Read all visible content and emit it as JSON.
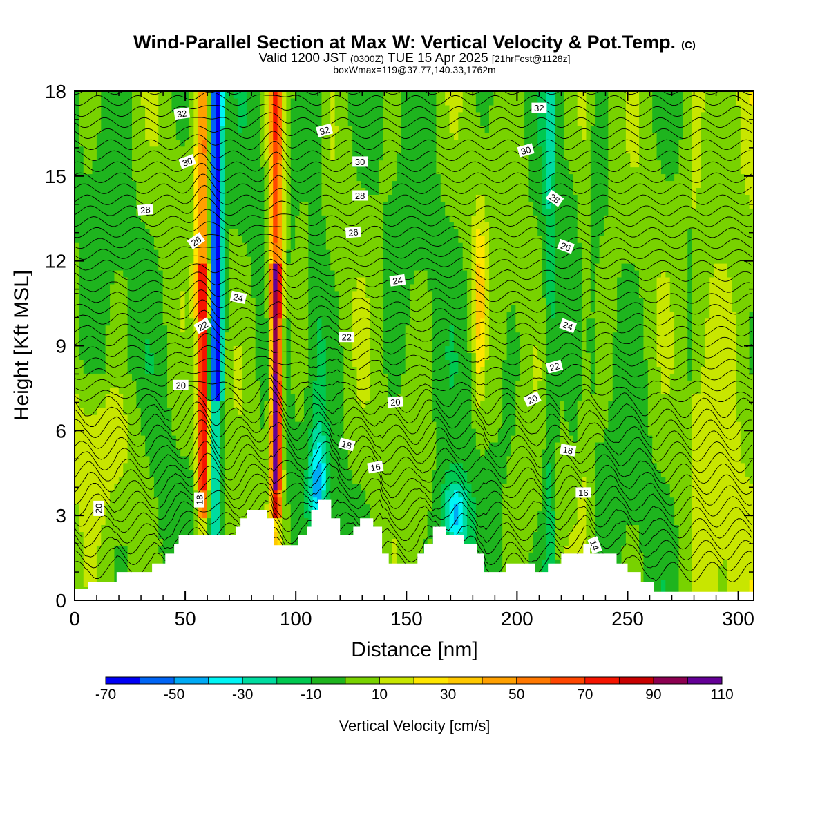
{
  "chart_data": {
    "type": "heatmap",
    "title": "Wind-Parallel Section at Max W: Vertical Velocity & Pot.Temp.",
    "title_mark": "(C)",
    "subtitle_parts": [
      "Valid 1200 JST ",
      "(0300Z)",
      " TUE 15 Apr 2025 ",
      "[21hrFcst@1128z]"
    ],
    "subtitle2": "boxWmax=119@37.77,140.33,1762m",
    "xlabel": "Distance [nm]",
    "ylabel": "Height [Kft MSL]",
    "xlim": [
      0,
      307
    ],
    "ylim": [
      0,
      18
    ],
    "x_ticks": [
      0,
      50,
      100,
      150,
      200,
      250,
      300
    ],
    "y_ticks": [
      0,
      3,
      6,
      9,
      12,
      15,
      18
    ],
    "colorbar": {
      "label": "Vertical Velocity [cm/s]",
      "levels": [
        -70,
        -60,
        -50,
        -40,
        -30,
        -20,
        -10,
        0,
        10,
        20,
        30,
        40,
        50,
        60,
        70,
        80,
        90,
        100,
        110
      ],
      "tick_labels": [
        "-70",
        "-50",
        "-30",
        "-10",
        "10",
        "30",
        "50",
        "70",
        "90",
        "110"
      ],
      "colors": [
        "#0000f5",
        "#0064f5",
        "#00aaf5",
        "#00f5f5",
        "#00dca0",
        "#00c850",
        "#1eb41e",
        "#78d200",
        "#c8e600",
        "#ffe600",
        "#ffc800",
        "#ffa000",
        "#ff7800",
        "#ff4600",
        "#f51400",
        "#c80000",
        "#8c0050",
        "#640096"
      ]
    },
    "updrafts": [
      {
        "x": 58,
        "peak": 85
      },
      {
        "x": 91,
        "peak": 110
      },
      {
        "x": 183,
        "peak": 30
      },
      {
        "x": 230,
        "peak": 10
      }
    ],
    "downdrafts": [
      {
        "x": 64,
        "peak": -70
      },
      {
        "x": 110,
        "peak": -35
      },
      {
        "x": 172,
        "peak": -45
      },
      {
        "x": 215,
        "peak": -25
      }
    ],
    "terrain": [
      [
        0,
        0.4
      ],
      [
        6,
        0.4
      ],
      [
        6,
        0.65
      ],
      [
        19,
        0.65
      ],
      [
        19,
        1.0
      ],
      [
        35,
        1.0
      ],
      [
        35,
        1.3
      ],
      [
        41,
        1.3
      ],
      [
        41,
        1.65
      ],
      [
        45,
        1.65
      ],
      [
        45,
        2.0
      ],
      [
        47,
        2.0
      ],
      [
        47,
        2.3
      ],
      [
        73,
        2.3
      ],
      [
        73,
        2.6
      ],
      [
        75,
        2.6
      ],
      [
        75,
        2.9
      ],
      [
        78,
        2.9
      ],
      [
        78,
        3.2
      ],
      [
        87,
        3.2
      ],
      [
        87,
        2.9
      ],
      [
        90,
        2.9
      ],
      [
        90,
        1.95
      ],
      [
        101,
        1.95
      ],
      [
        101,
        2.3
      ],
      [
        105,
        2.3
      ],
      [
        105,
        2.6
      ],
      [
        107,
        2.6
      ],
      [
        107,
        3.2
      ],
      [
        110,
        3.2
      ],
      [
        110,
        3.55
      ],
      [
        116,
        3.55
      ],
      [
        116,
        2.9
      ],
      [
        120,
        2.9
      ],
      [
        120,
        2.3
      ],
      [
        126,
        2.3
      ],
      [
        126,
        2.6
      ],
      [
        129,
        2.6
      ],
      [
        129,
        2.9
      ],
      [
        135,
        2.9
      ],
      [
        135,
        2.6
      ],
      [
        139,
        2.6
      ],
      [
        139,
        1.65
      ],
      [
        142,
        1.65
      ],
      [
        142,
        1.3
      ],
      [
        155,
        1.3
      ],
      [
        155,
        1.65
      ],
      [
        158,
        1.65
      ],
      [
        158,
        2.0
      ],
      [
        162,
        2.0
      ],
      [
        162,
        2.6
      ],
      [
        168,
        2.6
      ],
      [
        168,
        2.3
      ],
      [
        176,
        2.3
      ],
      [
        176,
        2.0
      ],
      [
        182,
        2.0
      ],
      [
        182,
        1.65
      ],
      [
        185,
        1.65
      ],
      [
        185,
        1.0
      ],
      [
        195,
        1.0
      ],
      [
        195,
        1.3
      ],
      [
        208,
        1.3
      ],
      [
        208,
        1.0
      ],
      [
        214,
        1.0
      ],
      [
        214,
        1.3
      ],
      [
        220,
        1.3
      ],
      [
        220,
        1.65
      ],
      [
        230,
        1.65
      ],
      [
        230,
        2.0
      ],
      [
        233,
        2.0
      ],
      [
        233,
        1.65
      ],
      [
        245,
        1.65
      ],
      [
        245,
        1.3
      ],
      [
        250,
        1.3
      ],
      [
        250,
        1.0
      ],
      [
        256,
        1.0
      ],
      [
        256,
        0.65
      ],
      [
        262,
        0.65
      ],
      [
        262,
        0.3
      ],
      [
        307,
        0.3
      ]
    ],
    "contour_labels": [
      {
        "text": "32",
        "x": 48.5,
        "y": 17.2,
        "rot": -8
      },
      {
        "text": "32",
        "x": 113,
        "y": 16.6,
        "rot": -15
      },
      {
        "text": "32",
        "x": 210,
        "y": 17.4,
        "rot": 0
      },
      {
        "text": "30",
        "x": 51,
        "y": 15.5,
        "rot": -20
      },
      {
        "text": "30",
        "x": 129,
        "y": 15.5,
        "rot": 0
      },
      {
        "text": "30",
        "x": 204,
        "y": 15.9,
        "rot": -15
      },
      {
        "text": "28",
        "x": 32,
        "y": 13.8,
        "rot": -5
      },
      {
        "text": "28",
        "x": 129,
        "y": 14.3,
        "rot": 0
      },
      {
        "text": "28",
        "x": 217,
        "y": 14.2,
        "rot": 35
      },
      {
        "text": "26",
        "x": 55,
        "y": 12.7,
        "rot": -35
      },
      {
        "text": "26",
        "x": 126,
        "y": 13.0,
        "rot": -5
      },
      {
        "text": "26",
        "x": 222,
        "y": 12.5,
        "rot": 20
      },
      {
        "text": "24",
        "x": 74,
        "y": 10.7,
        "rot": 12
      },
      {
        "text": "24",
        "x": 146,
        "y": 11.3,
        "rot": -8
      },
      {
        "text": "24",
        "x": 223,
        "y": 9.7,
        "rot": 20
      },
      {
        "text": "22",
        "x": 58,
        "y": 9.7,
        "rot": -30
      },
      {
        "text": "22",
        "x": 123,
        "y": 9.3,
        "rot": 0
      },
      {
        "text": "22",
        "x": 217,
        "y": 8.25,
        "rot": -15
      },
      {
        "text": "20",
        "x": 48,
        "y": 7.6,
        "rot": 0
      },
      {
        "text": "20",
        "x": 145,
        "y": 7.0,
        "rot": -5
      },
      {
        "text": "20",
        "x": 207,
        "y": 7.1,
        "rot": -25
      },
      {
        "text": "20",
        "x": 11,
        "y": 3.25,
        "rot": -90
      },
      {
        "text": "18",
        "x": 123,
        "y": 5.5,
        "rot": 15
      },
      {
        "text": "18",
        "x": 223,
        "y": 5.3,
        "rot": 10
      },
      {
        "text": "18",
        "x": 56.5,
        "y": 3.55,
        "rot": -90
      },
      {
        "text": "16",
        "x": 136,
        "y": 4.7,
        "rot": -10
      },
      {
        "text": "16",
        "x": 230,
        "y": 3.8,
        "rot": 0
      },
      {
        "text": "14",
        "x": 235,
        "y": 1.95,
        "rot": 70
      }
    ]
  }
}
